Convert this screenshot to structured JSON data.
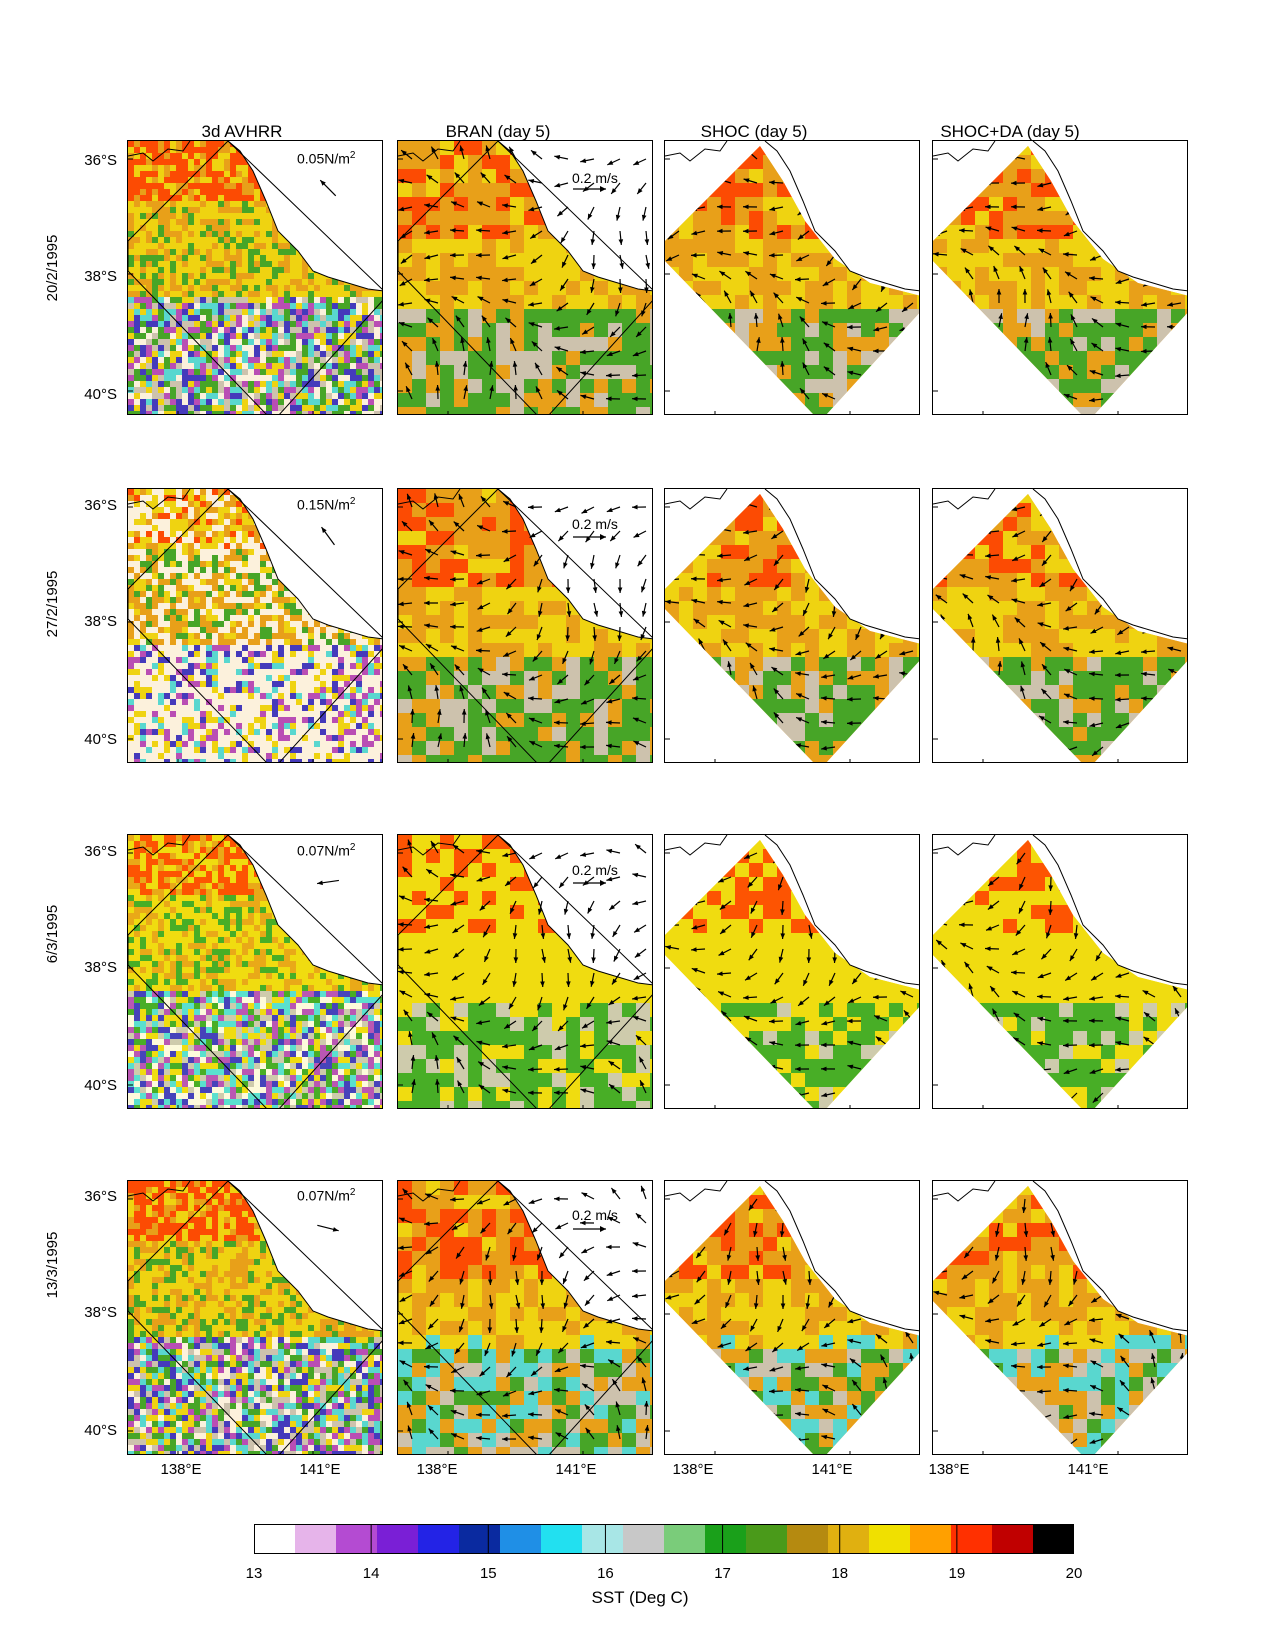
{
  "figure": {
    "column_titles": [
      "3d AVHRR",
      "BRAN (day 5)",
      "SHOC (day 5)",
      "SHOC+DA (day 5)"
    ],
    "row_labels": [
      "20/2/1995",
      "27/2/1995",
      "6/3/1995",
      "13/3/1995"
    ],
    "lat_labels": [
      "36°S",
      "38°S",
      "40°S"
    ],
    "lon_labels": [
      "138°E",
      "141°E"
    ],
    "wind_stress_labels": [
      "0.05N/m",
      "0.15N/m",
      "0.07N/m",
      "0.07N/m"
    ],
    "wind_stress_superscript": "2",
    "current_scale_label": "0.2 m/s",
    "colorbar": {
      "ticks": [
        "13",
        "14",
        "15",
        "16",
        "17",
        "18",
        "19",
        "20"
      ],
      "label": "SST (Deg C)",
      "range": [
        13,
        20
      ],
      "colors": [
        "#ffffff",
        "#e6b4ea",
        "#b44bd2",
        "#7a1fd6",
        "#2323e6",
        "#0a2aa0",
        "#1f8fe6",
        "#22e0f0",
        "#a8e6e6",
        "#c8c8c8",
        "#7acc7a",
        "#1aa01a",
        "#4a9a1a",
        "#b58a10",
        "#e0b010",
        "#f0e000",
        "#ffa000",
        "#ff3000",
        "#c00000",
        "#000000"
      ]
    },
    "map_colors": {
      "warm": "#e8a01a",
      "hot": "#ff3c00",
      "yellow": "#f0dc10",
      "green": "#2aa62a",
      "grey": "#c8c8c8",
      "cyan": "#40e0f0",
      "blue": "#2828d8",
      "purple": "#b040d0",
      "darkred": "#7a0000"
    }
  }
}
